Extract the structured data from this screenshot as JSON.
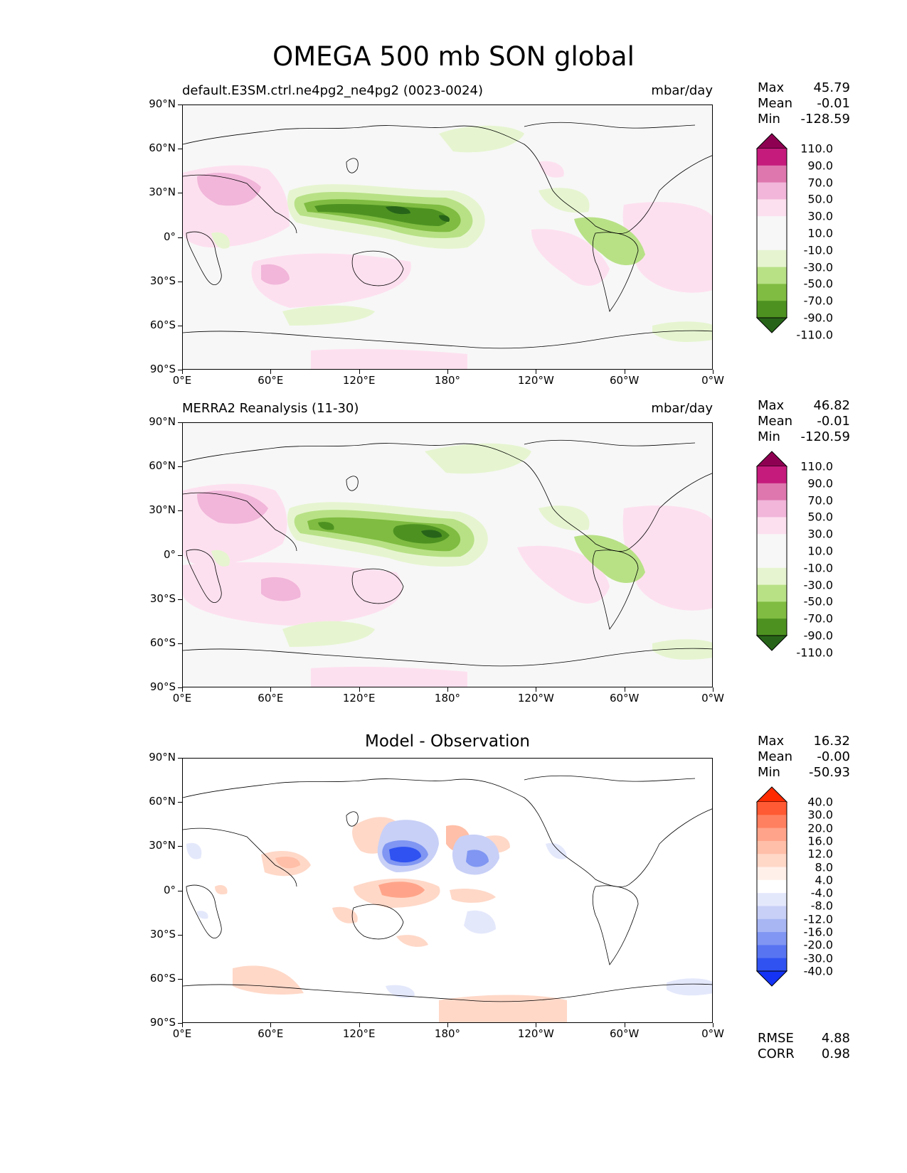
{
  "title": "OMEGA 500 mb SON global",
  "y_ticks": [
    "90°N",
    "60°N",
    "30°N",
    "0°",
    "30°S",
    "60°S",
    "90°S"
  ],
  "x_ticks": [
    "0°E",
    "60°E",
    "120°E",
    "180°",
    "120°W",
    "60°W",
    "0°W"
  ],
  "panels": [
    {
      "title_left": "default.E3SM.ctrl.ne4pg2_ne4pg2 (0023-0024)",
      "title_right": "mbar/day",
      "title_center": "",
      "stats": {
        "max_label": "Max",
        "max": "45.79",
        "mean_label": "Mean",
        "mean": "-0.01",
        "min_label": "Min",
        "min": "-128.59"
      },
      "colorbar_levels": [
        "110.0",
        "90.0",
        "70.0",
        "50.0",
        "30.0",
        "10.0",
        "-10.0",
        "-30.0",
        "-50.0",
        "-70.0",
        "-90.0",
        "-110.0"
      ],
      "colorbar_colors": [
        "#8e0152",
        "#c51b7d",
        "#de77ae",
        "#f1b6da",
        "#fde0ef",
        "#f7f7f7",
        "#f7f7f7",
        "#e6f5d0",
        "#b8e186",
        "#7fbc41",
        "#4d9221",
        "#276419"
      ]
    },
    {
      "title_left": "MERRA2 Reanalysis (11-30)",
      "title_right": "mbar/day",
      "title_center": "",
      "stats": {
        "max_label": "Max",
        "max": "46.82",
        "mean_label": "Mean",
        "mean": "-0.01",
        "min_label": "Min",
        "min": "-120.59"
      },
      "colorbar_levels": [
        "110.0",
        "90.0",
        "70.0",
        "50.0",
        "30.0",
        "10.0",
        "-10.0",
        "-30.0",
        "-50.0",
        "-70.0",
        "-90.0",
        "-110.0"
      ],
      "colorbar_colors": [
        "#8e0152",
        "#c51b7d",
        "#de77ae",
        "#f1b6da",
        "#fde0ef",
        "#f7f7f7",
        "#f7f7f7",
        "#e6f5d0",
        "#b8e186",
        "#7fbc41",
        "#4d9221",
        "#276419"
      ]
    },
    {
      "title_left": "",
      "title_right": "",
      "title_center": "Model - Observation",
      "stats": {
        "max_label": "Max",
        "max": "16.32",
        "mean_label": "Mean",
        "mean": "-0.00",
        "min_label": "Min",
        "min": "-50.93"
      },
      "colorbar_levels": [
        "40.0",
        "30.0",
        "20.0",
        "16.0",
        "12.0",
        "8.0",
        "4.0",
        "-4.0",
        "-8.0",
        "-12.0",
        "-16.0",
        "-20.0",
        "-30.0",
        "-40.0"
      ],
      "colorbar_colors": [
        "#ff2a00",
        "#ff5a33",
        "#ff8060",
        "#ffa48a",
        "#ffbfa8",
        "#ffd8c8",
        "#fff0ea",
        "#ffffff",
        "#e4e8fb",
        "#c8d0f7",
        "#a8b6f4",
        "#8096f2",
        "#5874f1",
        "#2f52f1",
        "#1433f4"
      ],
      "metrics": {
        "rmse_label": "RMSE",
        "rmse": "4.88",
        "corr_label": "CORR",
        "corr": "0.98"
      }
    }
  ],
  "chart_data": [
    {
      "type": "heatmap",
      "title": "default.E3SM.ctrl.ne4pg2_ne4pg2 (0023-0024)",
      "units": "mbar/day",
      "xlim": [
        0,
        360
      ],
      "ylim": [
        -90,
        90
      ],
      "features": [
        {
          "lon": 120,
          "lat": 12,
          "value": -110
        },
        {
          "lon": 158,
          "lat": 10,
          "value": -100
        },
        {
          "lon": 105,
          "lat": 12,
          "value": -70
        },
        {
          "lon": 40,
          "lat": 25,
          "value": 40
        },
        {
          "lon": -55,
          "lat": -10,
          "value": -40
        },
        {
          "lon": 45,
          "lat": -25,
          "value": 35
        }
      ]
    },
    {
      "type": "heatmap",
      "title": "MERRA2 Reanalysis (11-30)",
      "units": "mbar/day",
      "xlim": [
        0,
        360
      ],
      "ylim": [
        -90,
        90
      ],
      "features": [
        {
          "lon": 175,
          "lat": 8,
          "value": -110
        },
        {
          "lon": 100,
          "lat": 12,
          "value": -70
        },
        {
          "lon": 40,
          "lat": 25,
          "value": 40
        },
        {
          "lon": -55,
          "lat": -10,
          "value": -40
        },
        {
          "lon": 40,
          "lat": -25,
          "value": 35
        }
      ]
    },
    {
      "type": "heatmap",
      "title": "Model - Observation",
      "units": "mbar/day",
      "xlim": [
        0,
        360
      ],
      "ylim": [
        -90,
        90
      ],
      "features": [
        {
          "lon": 163,
          "lat": 15,
          "value": -40
        },
        {
          "lon": 205,
          "lat": 15,
          "value": -25
        },
        {
          "lon": 165,
          "lat": -2,
          "value": 12
        },
        {
          "lon": 187,
          "lat": 25,
          "value": 12
        },
        {
          "lon": 80,
          "lat": 15,
          "value": 10
        },
        {
          "lon": 195,
          "lat": -35,
          "value": -10
        }
      ]
    }
  ]
}
